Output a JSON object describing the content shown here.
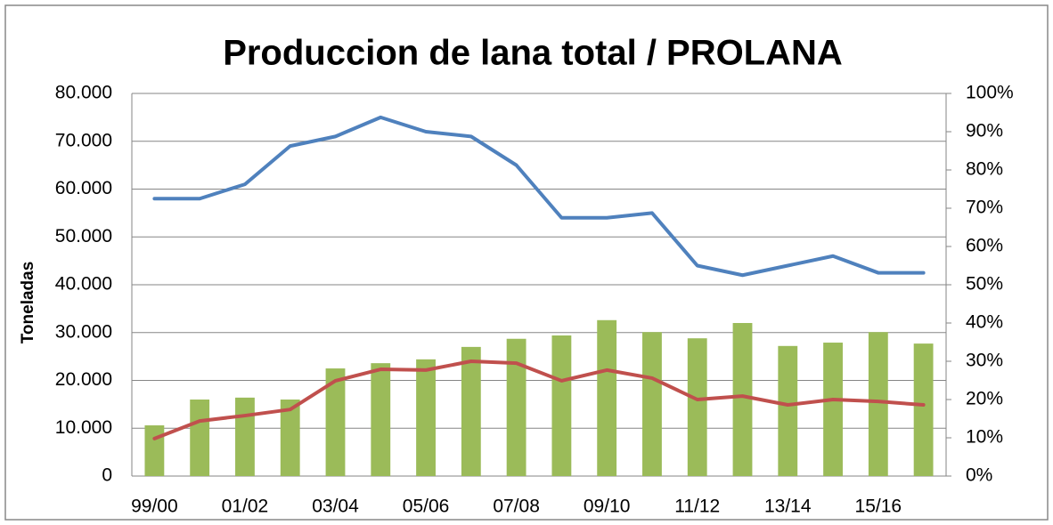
{
  "chart_data": {
    "type": "bar",
    "title": "Produccion de lana total / PROLANA",
    "y_label": "Toneladas",
    "categories": [
      "99/00",
      null,
      "01/02",
      null,
      "03/04",
      null,
      "05/06",
      null,
      "07/08",
      null,
      "09/10",
      null,
      "11/12",
      null,
      "13/14",
      null,
      "15/16",
      null
    ],
    "series": [
      {
        "type": "bar",
        "color": "#9bbb59",
        "axis": "y",
        "values": [
          10600,
          16000,
          16400,
          16000,
          22500,
          23600,
          24400,
          27000,
          28700,
          29400,
          32600,
          30100,
          28800,
          32000,
          27200,
          27900,
          30100,
          27700
        ]
      },
      {
        "type": "line",
        "color": "#4f81bd",
        "axis": "y",
        "values": [
          58000,
          58000,
          61000,
          69000,
          71000,
          75000,
          72000,
          71000,
          65000,
          54000,
          54000,
          55000,
          44000,
          42000,
          44000,
          46000,
          42500,
          42500
        ]
      },
      {
        "type": "line",
        "color": "#c0504d",
        "axis": "y2",
        "values": [
          9.8,
          14.4,
          15.8,
          17.4,
          24.9,
          27.9,
          27.7,
          30.0,
          29.5,
          24.9,
          27.7,
          25.6,
          20.0,
          20.9,
          18.6,
          20.0,
          19.5,
          18.6
        ]
      }
    ],
    "ylim": [
      0,
      80000
    ],
    "yticks": [
      0,
      {
        "value": 10000,
        "label": "10.000"
      },
      {
        "value": 20000,
        "label": "20.000"
      },
      {
        "value": 30000,
        "label": "30.000"
      },
      {
        "value": 40000,
        "label": "40.000"
      },
      {
        "value": 50000,
        "label": "50.000"
      },
      {
        "value": 60000,
        "label": "60.000"
      },
      {
        "value": 70000,
        "label": "70.000"
      },
      {
        "value": 80000,
        "label": "80.000"
      }
    ],
    "y2lim": [
      0,
      100
    ],
    "y2ticks": [
      {
        "value": 0,
        "label": "0%"
      },
      {
        "value": 10,
        "label": "10%"
      },
      {
        "value": 20,
        "label": "20%"
      },
      {
        "value": 30,
        "label": "30%"
      },
      {
        "value": 40,
        "label": "40%"
      },
      {
        "value": 50,
        "label": "50%"
      },
      {
        "value": 60,
        "label": "60%"
      },
      {
        "value": 70,
        "label": "70%"
      },
      {
        "value": 80,
        "label": "80%"
      },
      {
        "value": 90,
        "label": "90%"
      },
      {
        "value": 100,
        "label": "100%"
      }
    ],
    "grid": true
  }
}
